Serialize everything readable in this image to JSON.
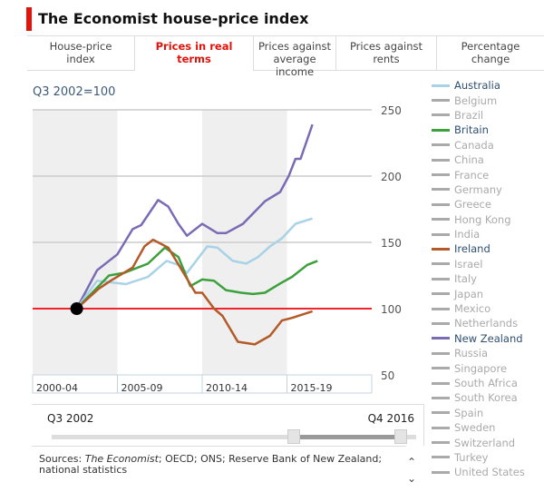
{
  "header": {
    "title": "The Economist house-price index"
  },
  "tabs": [
    {
      "label": "House-price index",
      "active": false
    },
    {
      "label": "Prices in real terms",
      "active": true
    },
    {
      "label": "Prices against average income",
      "active": false
    },
    {
      "label": "Prices against rents",
      "active": false
    },
    {
      "label": "Percentage change",
      "active": false
    }
  ],
  "legend": [
    {
      "name": "Australia",
      "on": true
    },
    {
      "name": "Belgium",
      "on": false
    },
    {
      "name": "Brazil",
      "on": false
    },
    {
      "name": "Britain",
      "on": true
    },
    {
      "name": "Canada",
      "on": false
    },
    {
      "name": "China",
      "on": false
    },
    {
      "name": "France",
      "on": false
    },
    {
      "name": "Germany",
      "on": false
    },
    {
      "name": "Greece",
      "on": false
    },
    {
      "name": "Hong Kong",
      "on": false
    },
    {
      "name": "India",
      "on": false
    },
    {
      "name": "Ireland",
      "on": true
    },
    {
      "name": "Israel",
      "on": false
    },
    {
      "name": "Italy",
      "on": false
    },
    {
      "name": "Japan",
      "on": false
    },
    {
      "name": "Mexico",
      "on": false
    },
    {
      "name": "Netherlands",
      "on": false
    },
    {
      "name": "New Zealand",
      "on": true
    },
    {
      "name": "Russia",
      "on": false
    },
    {
      "name": "Singapore",
      "on": false
    },
    {
      "name": "South Africa",
      "on": false
    },
    {
      "name": "South Korea",
      "on": false
    },
    {
      "name": "Spain",
      "on": false
    },
    {
      "name": "Sweden",
      "on": false
    },
    {
      "name": "Switzerland",
      "on": false
    },
    {
      "name": "Turkey",
      "on": false
    },
    {
      "name": "United States",
      "on": false
    }
  ],
  "slider": {
    "start_label": "Q3 2002",
    "end_label": "Q4 2016",
    "range_fraction": [
      0.72,
      1.0
    ]
  },
  "sources": {
    "prefix": "Sources: ",
    "italic": "The Economist",
    "rest": "; OECD; ONS; Reserve Bank of New Zealand; national statistics"
  },
  "chart_data": {
    "type": "line",
    "subtitle": "Q3 2002=100",
    "xlim": [
      2000,
      2020
    ],
    "ylim": [
      50,
      250
    ],
    "yticks": [
      50,
      100,
      150,
      200,
      250
    ],
    "xbands": [
      "2000-04",
      "2005-09",
      "2010-14",
      "2015-19"
    ],
    "baseline": 100,
    "grid": true,
    "legend_position": "right",
    "series": [
      {
        "name": "New Zealand",
        "color": "#7b6bb5",
        "x": [
          2002.6,
          2003.8,
          2005.0,
          2005.9,
          2006.4,
          2007.4,
          2008.0,
          2008.6,
          2009.1,
          2010.0,
          2010.9,
          2011.4,
          2012.4,
          2013.7,
          2014.6,
          2015.1,
          2015.5,
          2015.8,
          2016.5
        ],
        "y": [
          100,
          129,
          141,
          160,
          163,
          182,
          177,
          164,
          155,
          164,
          157,
          157,
          164,
          181,
          188,
          200,
          213,
          213,
          239
        ]
      },
      {
        "name": "Australia",
        "color": "#a8d2e6",
        "x": [
          2002.6,
          2003.8,
          2005.5,
          2006.8,
          2007.9,
          2008.6,
          2009.1,
          2010.3,
          2010.9,
          2011.8,
          2012.6,
          2013.3,
          2014.0,
          2014.7,
          2015.5,
          2016.5
        ],
        "y": [
          100,
          121,
          118.5,
          124,
          136,
          133,
          127,
          147,
          146,
          136,
          134,
          139,
          147,
          153,
          164,
          168
        ]
      },
      {
        "name": "Britain",
        "color": "#3ca03c",
        "x": [
          2002.6,
          2004.5,
          2005.4,
          2006.8,
          2007.8,
          2008.6,
          2009.3,
          2010.0,
          2010.7,
          2011.4,
          2012.3,
          2013.0,
          2013.7,
          2014.6,
          2015.3,
          2016.2,
          2016.8
        ],
        "y": [
          100,
          125,
          127,
          134,
          146,
          139,
          117,
          122,
          121,
          114,
          112,
          111,
          112,
          119,
          124,
          133,
          136
        ]
      },
      {
        "name": "Ireland",
        "color": "#b35a28",
        "x": [
          2002.6,
          2003.9,
          2004.6,
          2005.9,
          2006.6,
          2007.1,
          2008.0,
          2008.9,
          2009.6,
          2010.0,
          2010.7,
          2011.2,
          2012.1,
          2013.1,
          2014.0,
          2014.7,
          2015.3,
          2016.5
        ],
        "y": [
          100,
          115,
          121,
          131,
          147,
          152,
          146,
          127,
          112,
          112,
          100,
          94.5,
          75,
          73,
          79.5,
          91,
          93,
          98
        ]
      }
    ]
  }
}
